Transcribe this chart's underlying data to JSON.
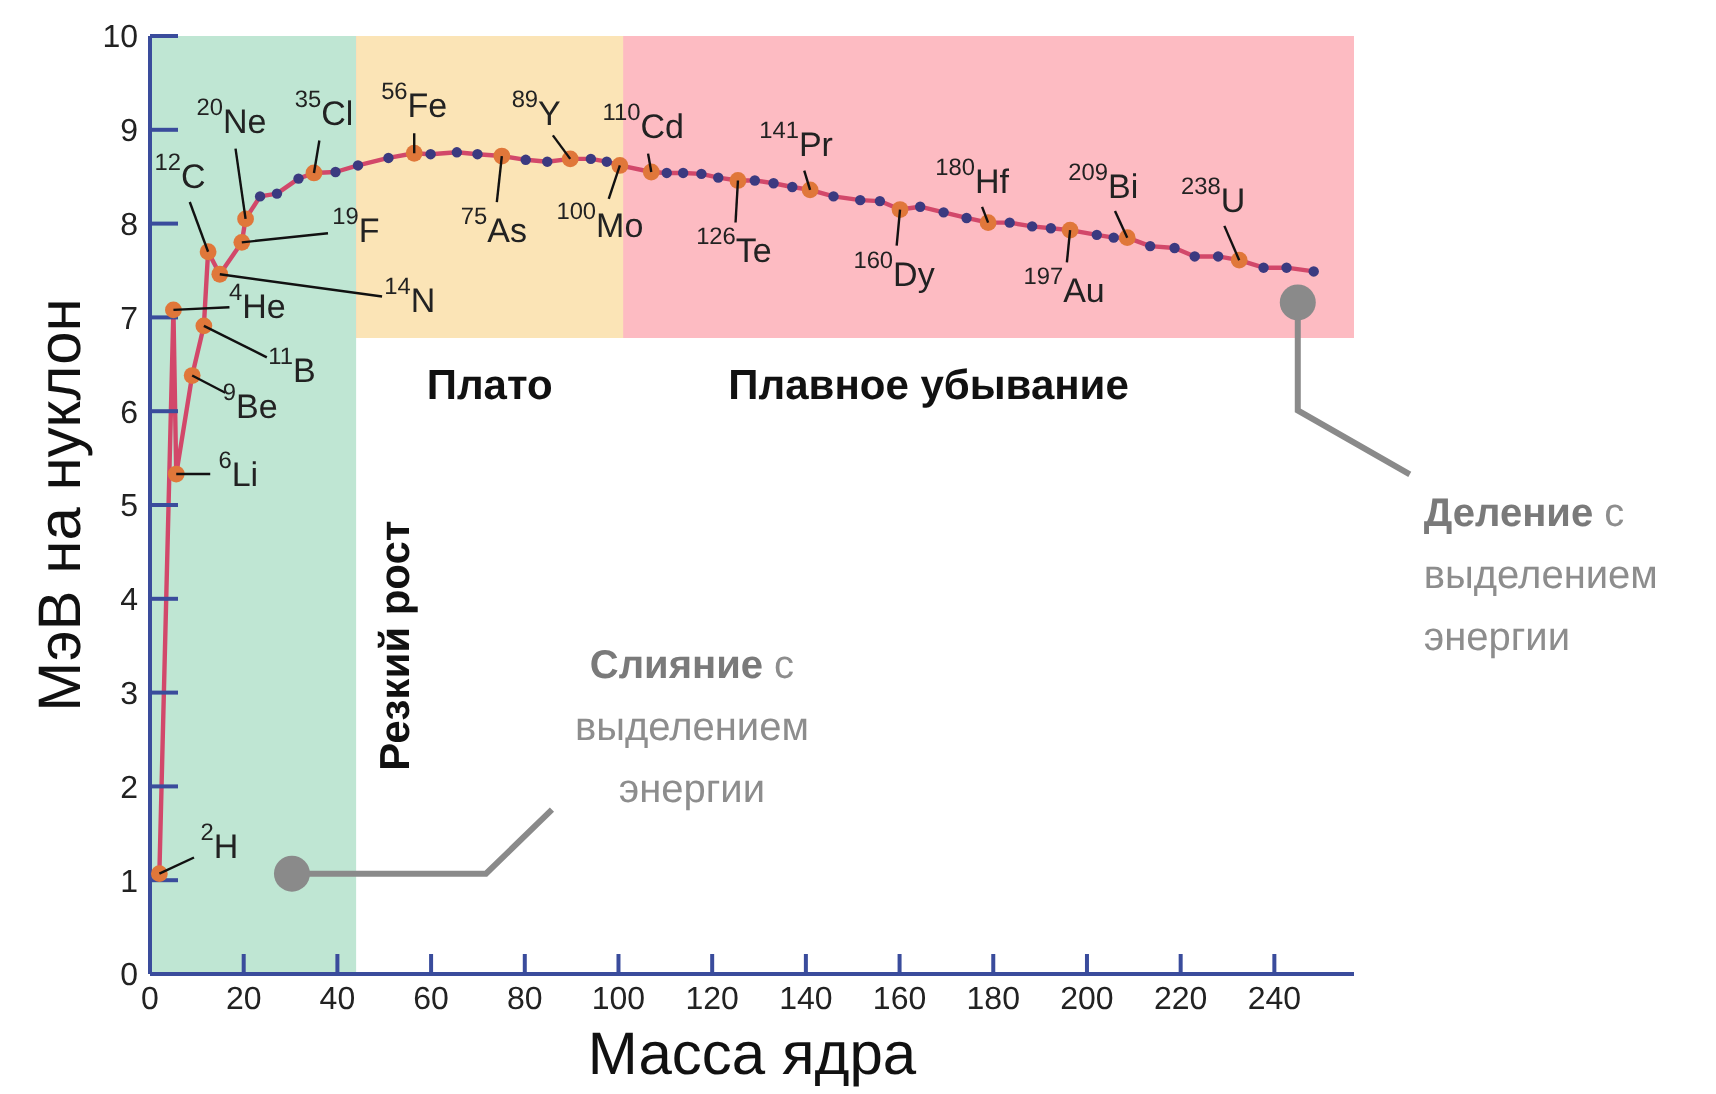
{
  "chart_data": {
    "type": "line",
    "xlabel": "Масса ядра",
    "ylabel": "МэВ на нуклон",
    "xlim": [
      0,
      257
    ],
    "xticks": [
      0,
      20,
      40,
      60,
      80,
      100,
      120,
      140,
      160,
      180,
      200,
      220,
      240
    ],
    "ylim": [
      0,
      10
    ],
    "yticks": [
      0,
      1,
      2,
      3,
      4,
      5,
      6,
      7,
      8,
      9,
      10
    ],
    "grid": false,
    "legend": false,
    "series": [
      {
        "color": "#d2486a",
        "marker": "circle",
        "x": [
          2,
          5,
          5.6,
          9,
          11.5,
          12.4,
          14.9,
          19.6,
          20.4,
          23.5,
          27.1,
          31.7,
          35,
          39.6,
          44.4,
          50.9,
          56.4,
          59.9,
          65.5,
          69.9,
          75.1,
          80.2,
          84.8,
          89.7,
          94.1,
          97.5,
          100.3,
          107,
          110.3,
          113.8,
          117.7,
          121.3,
          125.5,
          129.1,
          133.1,
          137.1,
          140.9,
          145.9,
          151.6,
          155.8,
          160.1,
          164.4,
          169.4,
          174.3,
          178.9,
          183.5,
          188.3,
          192.3,
          196.4,
          202.1,
          205.7,
          208.6,
          213.5,
          218.7,
          223,
          228,
          232.5,
          237.7,
          242.6,
          248.4
        ],
        "values": [
          1.07,
          7.08,
          5.33,
          6.38,
          6.91,
          7.7,
          7.46,
          7.8,
          8.05,
          8.29,
          8.32,
          8.48,
          8.54,
          8.55,
          8.62,
          8.7,
          8.75,
          8.74,
          8.76,
          8.74,
          8.72,
          8.68,
          8.66,
          8.69,
          8.69,
          8.66,
          8.62,
          8.55,
          8.54,
          8.54,
          8.53,
          8.49,
          8.46,
          8.46,
          8.43,
          8.39,
          8.36,
          8.29,
          8.25,
          8.24,
          8.15,
          8.18,
          8.12,
          8.06,
          8.01,
          8.01,
          7.97,
          7.95,
          7.93,
          7.88,
          7.85,
          7.85,
          7.76,
          7.74,
          7.65,
          7.65,
          7.61,
          7.53,
          7.53,
          7.49
        ]
      },
      {
        "type": "scatter",
        "color": "#e0773a",
        "x": [
          2,
          5,
          5.6,
          9,
          11.5,
          12.4,
          14.9,
          19.6,
          20.4,
          35,
          56.4,
          75.1,
          89.7,
          100.3,
          107,
          125.5,
          140.9,
          160.1,
          178.9,
          196.4,
          208.6,
          232.5
        ],
        "values": [
          1.07,
          7.08,
          5.33,
          6.38,
          6.91,
          7.7,
          7.46,
          7.8,
          8.05,
          8.54,
          8.75,
          8.72,
          8.69,
          8.62,
          8.55,
          8.46,
          8.36,
          8.15,
          8.01,
          7.93,
          7.85,
          7.61
        ]
      }
    ],
    "bands": [
      {
        "axis": "x",
        "from": 0,
        "to": 44,
        "label": "Резкий рост",
        "color": "#bfe6d3"
      },
      {
        "axis": "x",
        "from": 44,
        "to": 101,
        "label": "Плато",
        "color": "#fbe4b6"
      },
      {
        "axis": "y",
        "from": 6.78,
        "to": 10,
        "label": "Плавное убывание",
        "color": "#fdbbc2"
      }
    ],
    "annotations": [
      {
        "text": "$^{2}$H",
        "x": 2,
        "y": 1.07
      },
      {
        "text": "$^{4}$He",
        "x": 5,
        "y": 7.08
      },
      {
        "text": "$^{6}$Li",
        "x": 5.6,
        "y": 5.33
      },
      {
        "text": "$^{9}$Be",
        "x": 9,
        "y": 6.38
      },
      {
        "text": "$^{11}$B",
        "x": 11.5,
        "y": 6.91
      },
      {
        "text": "$^{12}$C",
        "x": 12.4,
        "y": 7.7
      },
      {
        "text": "$^{14}$N",
        "x": 14.9,
        "y": 7.46
      },
      {
        "text": "$^{19}$F",
        "x": 19.6,
        "y": 7.8
      },
      {
        "text": "$^{20}$Ne",
        "x": 20.4,
        "y": 8.05
      },
      {
        "text": "$^{35}$Cl",
        "x": 35,
        "y": 8.54
      },
      {
        "text": "$^{56}$Fe",
        "x": 56.4,
        "y": 8.75
      },
      {
        "text": "$^{75}$As",
        "x": 75.1,
        "y": 8.72
      },
      {
        "text": "$^{89}$Y",
        "x": 89.7,
        "y": 8.69
      },
      {
        "text": "$^{100}$Mo",
        "x": 100.3,
        "y": 8.62
      },
      {
        "text": "$^{110}$Cd",
        "x": 107,
        "y": 8.55
      },
      {
        "text": "$^{126}$Te",
        "x": 125.5,
        "y": 8.46
      },
      {
        "text": "$^{141}$Pr",
        "x": 140.9,
        "y": 8.36
      },
      {
        "text": "$^{160}$Dy",
        "x": 160.1,
        "y": 8.15
      },
      {
        "text": "$^{180}$Hf",
        "x": 178.9,
        "y": 8.01
      },
      {
        "text": "$^{197}$Au",
        "x": 196.4,
        "y": 7.93
      },
      {
        "text": "$^{209}$Bi",
        "x": 208.6,
        "y": 7.85
      },
      {
        "text": "$^{238}$U",
        "x": 232.5,
        "y": 7.61
      },
      {
        "text": "Слияние с выделением энергии",
        "x": 30.3,
        "y": 1.07
      },
      {
        "text": "Деление с выделением энергии",
        "x": 245,
        "y": 7.16
      }
    ]
  }
}
